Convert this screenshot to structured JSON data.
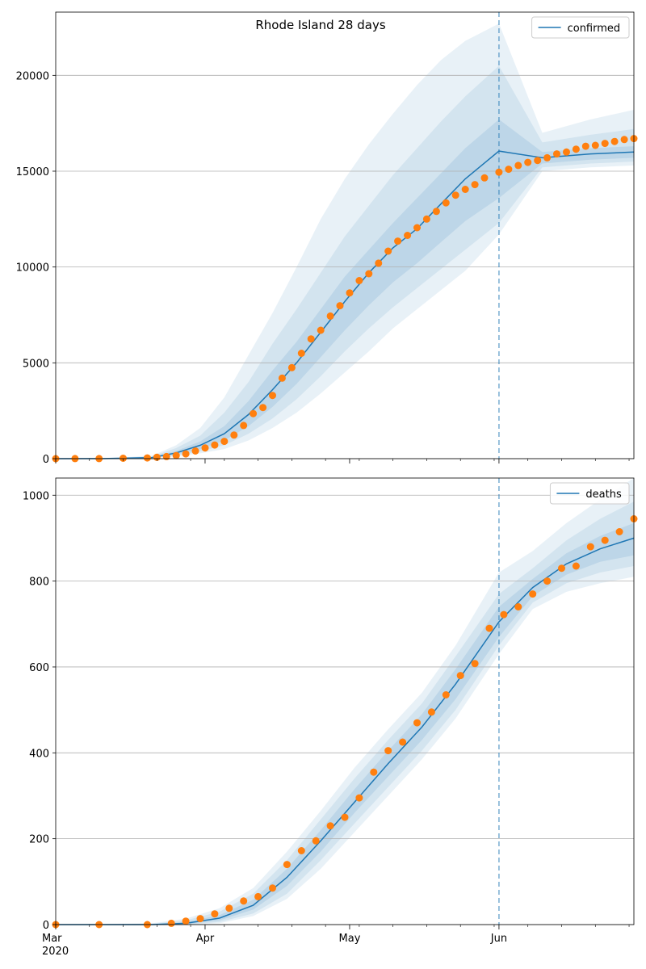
{
  "figure": {
    "title": "Rhode Island 28 days"
  },
  "colors": {
    "model_line": "#1f77b4",
    "band": "#1f77b4",
    "observed": "#ff7f0e",
    "grid": "#b0b0b0",
    "forecast_marker": "#1f77b4"
  },
  "chart_data": [
    {
      "type": "line",
      "panel": "top",
      "title": "Rhode Island 28 days",
      "legend": [
        "confirmed"
      ],
      "legend_position": "top-right",
      "grid": "y-only",
      "x_axis": {
        "type": "date",
        "range": [
          "2020-03-01",
          "2020-06-29"
        ],
        "major_ticks": [],
        "tick_labels_shown": false
      },
      "ylim": [
        0,
        23300
      ],
      "yticks": [
        0,
        5000,
        10000,
        15000,
        20000
      ],
      "ytick_labels": [
        "0",
        "5000",
        "10000",
        "15000",
        "20000"
      ],
      "forecast_start": "2020-06-01",
      "model": {
        "name": "confirmed",
        "x": [
          "2020-03-01",
          "2020-03-11",
          "2020-03-21",
          "2020-03-26",
          "2020-03-31",
          "2020-04-05",
          "2020-04-10",
          "2020-04-15",
          "2020-04-20",
          "2020-04-25",
          "2020-04-30",
          "2020-05-05",
          "2020-05-10",
          "2020-05-15",
          "2020-05-20",
          "2020-05-25",
          "2020-06-01",
          "2020-06-10",
          "2020-06-20",
          "2020-06-29"
        ],
        "median": [
          0,
          5,
          60,
          300,
          700,
          1300,
          2300,
          3600,
          5000,
          6600,
          8200,
          9700,
          11000,
          12000,
          13300,
          14600,
          16050,
          15700,
          15900,
          16000
        ],
        "band_50": [
          [
            0,
            0
          ],
          [
            0,
            10
          ],
          [
            40,
            90
          ],
          [
            220,
            400
          ],
          [
            500,
            900
          ],
          [
            950,
            1700
          ],
          [
            1700,
            3000
          ],
          [
            2700,
            4600
          ],
          [
            3900,
            6100
          ],
          [
            5300,
            7800
          ],
          [
            6700,
            9500
          ],
          [
            8000,
            10900
          ],
          [
            9200,
            12300
          ],
          [
            10200,
            13600
          ],
          [
            11300,
            14900
          ],
          [
            12400,
            16200
          ],
          [
            13600,
            17700
          ],
          [
            15400,
            16000
          ],
          [
            15600,
            16200
          ],
          [
            15700,
            16300
          ]
        ],
        "band_80": [
          [
            0,
            0
          ],
          [
            0,
            15
          ],
          [
            30,
            120
          ],
          [
            160,
            550
          ],
          [
            380,
            1200
          ],
          [
            700,
            2400
          ],
          [
            1300,
            4000
          ],
          [
            2100,
            6000
          ],
          [
            3100,
            7800
          ],
          [
            4300,
            9700
          ],
          [
            5600,
            11600
          ],
          [
            6800,
            13200
          ],
          [
            7900,
            14800
          ],
          [
            8900,
            16200
          ],
          [
            9900,
            17600
          ],
          [
            10900,
            18900
          ],
          [
            12300,
            20500
          ],
          [
            15200,
            16500
          ],
          [
            15400,
            16900
          ],
          [
            15500,
            17200
          ]
        ],
        "band_95": [
          [
            0,
            0
          ],
          [
            0,
            20
          ],
          [
            20,
            150
          ],
          [
            120,
            700
          ],
          [
            280,
            1600
          ],
          [
            500,
            3200
          ],
          [
            950,
            5400
          ],
          [
            1600,
            7600
          ],
          [
            2400,
            10000
          ],
          [
            3400,
            12500
          ],
          [
            4500,
            14600
          ],
          [
            5600,
            16400
          ],
          [
            6800,
            18000
          ],
          [
            7800,
            19500
          ],
          [
            8800,
            20800
          ],
          [
            9800,
            21800
          ],
          [
            11700,
            22700
          ],
          [
            15000,
            17000
          ],
          [
            15200,
            17700
          ],
          [
            15300,
            18200
          ]
        ]
      },
      "observed": {
        "x": [
          "2020-03-01",
          "2020-03-05",
          "2020-03-10",
          "2020-03-15",
          "2020-03-20",
          "2020-03-22",
          "2020-03-24",
          "2020-03-26",
          "2020-03-28",
          "2020-03-30",
          "2020-04-01",
          "2020-04-03",
          "2020-04-05",
          "2020-04-07",
          "2020-04-09",
          "2020-04-11",
          "2020-04-13",
          "2020-04-15",
          "2020-04-17",
          "2020-04-19",
          "2020-04-21",
          "2020-04-23",
          "2020-04-25",
          "2020-04-27",
          "2020-04-29",
          "2020-05-01",
          "2020-05-03",
          "2020-05-05",
          "2020-05-07",
          "2020-05-09",
          "2020-05-11",
          "2020-05-13",
          "2020-05-15",
          "2020-05-17",
          "2020-05-19",
          "2020-05-21",
          "2020-05-23",
          "2020-05-25",
          "2020-05-27",
          "2020-05-29",
          "2020-06-01",
          "2020-06-03",
          "2020-06-05",
          "2020-06-07",
          "2020-06-09",
          "2020-06-11",
          "2020-06-13",
          "2020-06-15",
          "2020-06-17",
          "2020-06-19",
          "2020-06-21",
          "2020-06-23",
          "2020-06-25",
          "2020-06-27",
          "2020-06-29"
        ],
        "values": [
          2,
          3,
          5,
          20,
          40,
          70,
          110,
          165,
          250,
          400,
          560,
          710,
          900,
          1230,
          1730,
          2350,
          2665,
          3300,
          4200,
          4750,
          5500,
          6250,
          6700,
          7440,
          7980,
          8650,
          9290,
          9650,
          10200,
          10830,
          11350,
          11650,
          12050,
          12500,
          12900,
          13350,
          13750,
          14050,
          14300,
          14650,
          14950,
          15100,
          15300,
          15460,
          15560,
          15700,
          15900,
          16000,
          16150,
          16300,
          16350,
          16450,
          16550,
          16650,
          16700
        ]
      }
    },
    {
      "type": "line",
      "panel": "bottom",
      "legend": [
        "deaths"
      ],
      "legend_position": "top-right",
      "grid": "y-only",
      "x_axis": {
        "type": "date",
        "range": [
          "2020-03-01",
          "2020-06-29"
        ],
        "major_ticks": [
          "2020-03-01",
          "2020-04-01",
          "2020-05-01",
          "2020-06-01"
        ],
        "tick_labels": [
          "Mar\n2020",
          "Apr",
          "May",
          "Jun"
        ]
      },
      "ylim": [
        0,
        1040
      ],
      "yticks": [
        0,
        200,
        400,
        600,
        800,
        1000
      ],
      "ytick_labels": [
        "0",
        "200",
        "400",
        "600",
        "800",
        "1000"
      ],
      "forecast_start": "2020-06-01",
      "model": {
        "name": "deaths",
        "x": [
          "2020-03-01",
          "2020-03-21",
          "2020-03-28",
          "2020-04-04",
          "2020-04-11",
          "2020-04-18",
          "2020-04-25",
          "2020-05-02",
          "2020-05-09",
          "2020-05-16",
          "2020-05-23",
          "2020-06-01",
          "2020-06-08",
          "2020-06-15",
          "2020-06-22",
          "2020-06-29"
        ],
        "median": [
          0,
          0,
          3,
          15,
          45,
          110,
          195,
          285,
          375,
          460,
          560,
          705,
          785,
          840,
          875,
          900
        ],
        "band_50": [
          [
            0,
            0
          ],
          [
            0,
            1
          ],
          [
            1,
            6
          ],
          [
            10,
            22
          ],
          [
            35,
            58
          ],
          [
            90,
            130
          ],
          [
            170,
            220
          ],
          [
            260,
            315
          ],
          [
            345,
            405
          ],
          [
            430,
            490
          ],
          [
            525,
            595
          ],
          [
            670,
            740
          ],
          [
            765,
            805
          ],
          [
            815,
            865
          ],
          [
            845,
            905
          ],
          [
            860,
            935
          ]
        ],
        "band_80": [
          [
            0,
            0
          ],
          [
            0,
            2
          ],
          [
            0,
            10
          ],
          [
            6,
            30
          ],
          [
            26,
            72
          ],
          [
            72,
            150
          ],
          [
            150,
            245
          ],
          [
            235,
            340
          ],
          [
            320,
            430
          ],
          [
            405,
            515
          ],
          [
            500,
            625
          ],
          [
            650,
            770
          ],
          [
            750,
            830
          ],
          [
            795,
            895
          ],
          [
            820,
            945
          ],
          [
            835,
            985
          ]
        ],
        "band_95": [
          [
            0,
            0
          ],
          [
            0,
            3
          ],
          [
            0,
            14
          ],
          [
            3,
            38
          ],
          [
            20,
            85
          ],
          [
            60,
            170
          ],
          [
            130,
            265
          ],
          [
            215,
            365
          ],
          [
            300,
            455
          ],
          [
            385,
            540
          ],
          [
            480,
            650
          ],
          [
            630,
            820
          ],
          [
            735,
            870
          ],
          [
            775,
            935
          ],
          [
            795,
            990
          ],
          [
            810,
            1040
          ]
        ]
      },
      "observed": {
        "x": [
          "2020-03-01",
          "2020-03-10",
          "2020-03-20",
          "2020-03-25",
          "2020-03-28",
          "2020-03-31",
          "2020-04-03",
          "2020-04-06",
          "2020-04-09",
          "2020-04-12",
          "2020-04-15",
          "2020-04-18",
          "2020-04-21",
          "2020-04-24",
          "2020-04-27",
          "2020-04-30",
          "2020-05-03",
          "2020-05-06",
          "2020-05-09",
          "2020-05-12",
          "2020-05-15",
          "2020-05-18",
          "2020-05-21",
          "2020-05-24",
          "2020-05-27",
          "2020-05-30",
          "2020-06-02",
          "2020-06-05",
          "2020-06-08",
          "2020-06-11",
          "2020-06-14",
          "2020-06-17",
          "2020-06-20",
          "2020-06-23",
          "2020-06-26",
          "2020-06-29"
        ],
        "values": [
          0,
          0,
          0,
          3,
          8,
          14,
          25,
          38,
          55,
          65,
          85,
          140,
          172,
          195,
          230,
          250,
          295,
          355,
          405,
          425,
          470,
          495,
          535,
          580,
          608,
          690,
          722,
          740,
          770,
          800,
          830,
          835,
          880,
          895,
          915,
          945
        ]
      }
    }
  ]
}
